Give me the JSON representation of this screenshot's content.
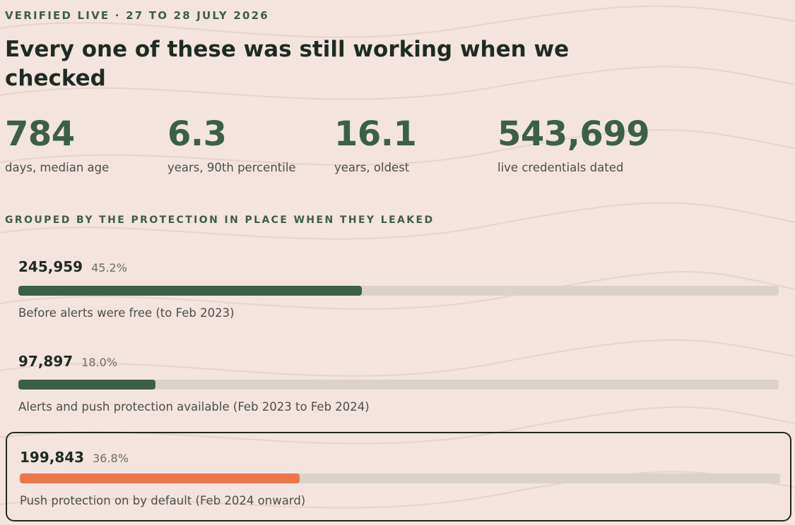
{
  "eyebrow": "VERIFIED LIVE · 27 TO 28 JULY 2026",
  "title": "Every one of these was still working when we checked",
  "stats": [
    {
      "value": "784",
      "label": "days, median age"
    },
    {
      "value": "6.3",
      "label": "years, 90th percentile"
    },
    {
      "value": "16.1",
      "label": "years, oldest"
    },
    {
      "value": "543,699",
      "label": "live credentials dated"
    }
  ],
  "section_label": "GROUPED BY THE PROTECTION IN PLACE WHEN THEY LEAKED",
  "colors": {
    "background": "#f3e4df",
    "accent_green": "#3b5f4a",
    "bar_track": "#dcd2cd",
    "highlight_orange": "#e8774a"
  },
  "chart_data": {
    "type": "bar",
    "orientation": "horizontal",
    "total": 543699,
    "bars": [
      {
        "count": "245,959",
        "value": 245959,
        "percent_label": "45.2%",
        "percent": 45.2,
        "label": "Before alerts were free (to Feb 2023)",
        "color": "#3b5f4a",
        "highlighted": false
      },
      {
        "count": "97,897",
        "value": 97897,
        "percent_label": "18.0%",
        "percent": 18.0,
        "label": "Alerts and push protection available (Feb 2023 to Feb 2024)",
        "color": "#3b5f4a",
        "highlighted": false
      },
      {
        "count": "199,843",
        "value": 199843,
        "percent_label": "36.8%",
        "percent": 36.8,
        "label": "Push protection on by default (Feb 2024 onward)",
        "color": "#e8774a",
        "highlighted": true
      }
    ],
    "xlim": [
      0,
      100
    ],
    "grid": false,
    "legend": "none"
  }
}
